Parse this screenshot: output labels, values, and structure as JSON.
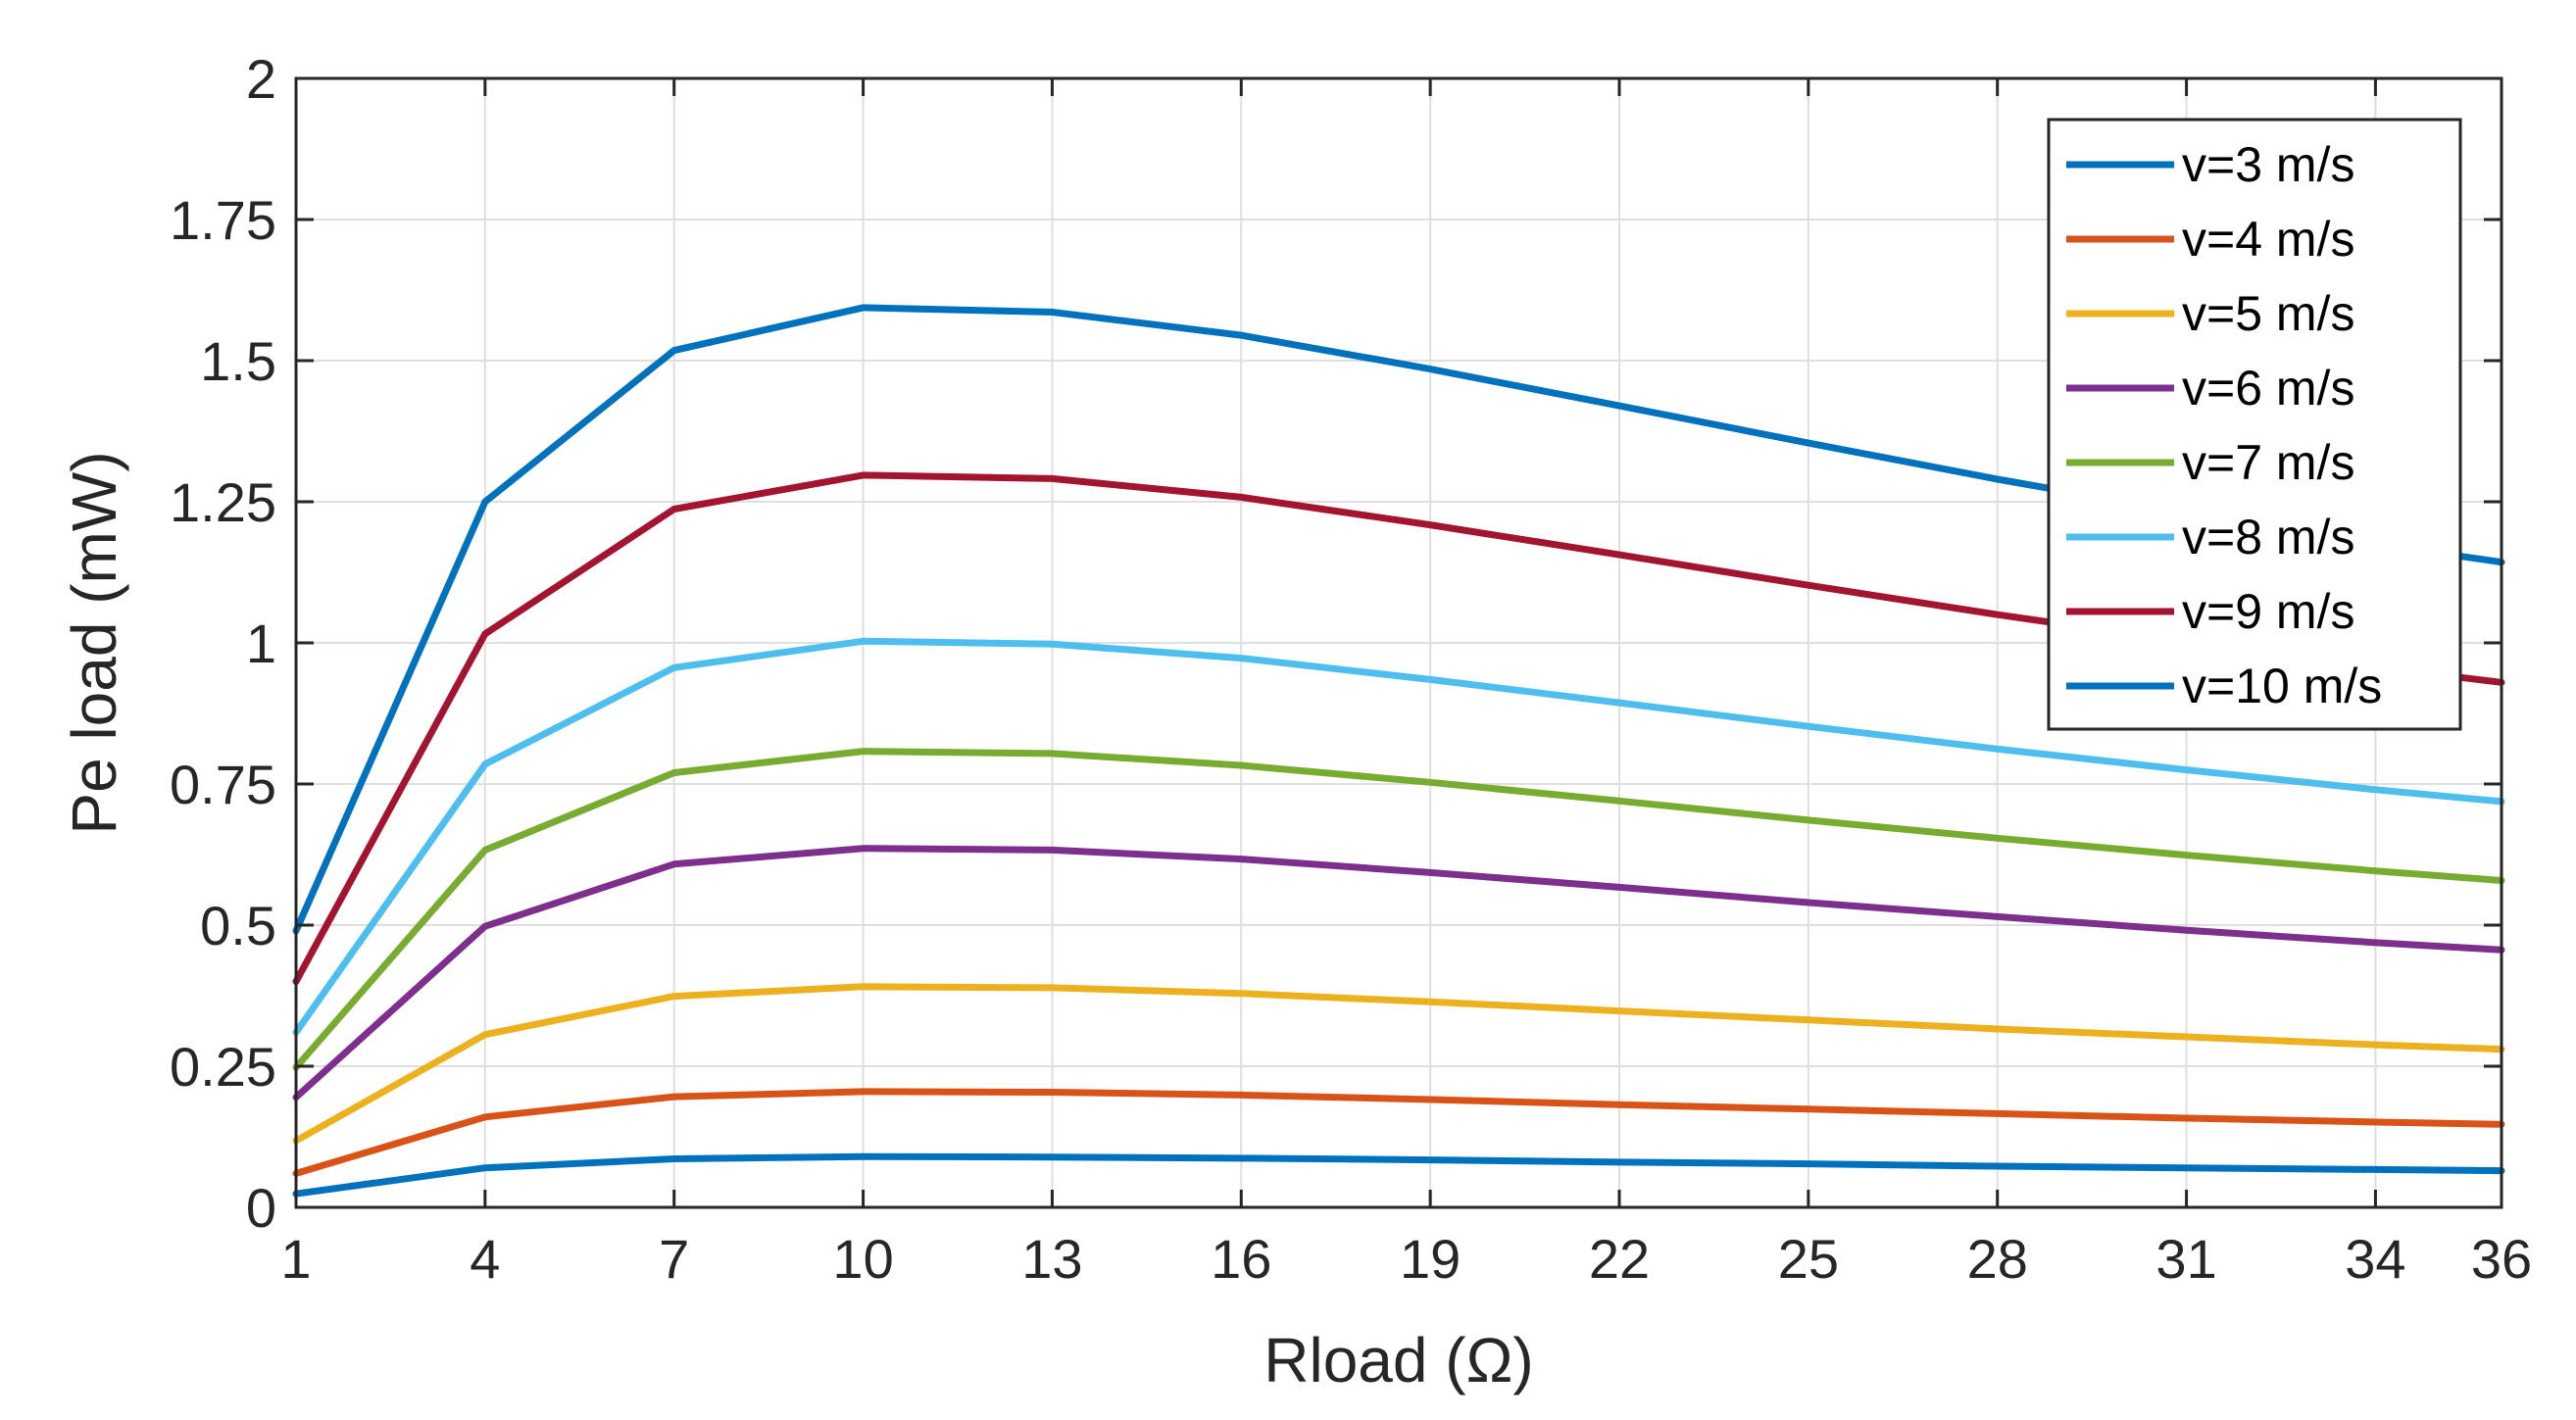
{
  "chart_data": {
    "type": "line",
    "title": "",
    "xlabel": "Rload (Ω)",
    "ylabel": "Pe load (mW)",
    "xlim": [
      1,
      36
    ],
    "ylim": [
      0,
      2
    ],
    "x_ticks": [
      1,
      4,
      7,
      10,
      13,
      16,
      19,
      22,
      25,
      28,
      31,
      34,
      36
    ],
    "y_ticks": [
      0,
      0.25,
      0.5,
      0.75,
      1,
      1.25,
      1.5,
      1.75,
      2
    ],
    "y_tick_labels": [
      "0",
      "0.25",
      "0.5",
      "0.75",
      "1",
      "1.25",
      "1.5",
      "1.75",
      "2"
    ],
    "grid": true,
    "legend_position": "top-right",
    "x": [
      1,
      4,
      7,
      10,
      13,
      16,
      19,
      22,
      25,
      28,
      31,
      34,
      36
    ],
    "series": [
      {
        "name": "v=3 m/s",
        "color": "#0072BD",
        "values": [
          0.024,
          0.07,
          0.086,
          0.09,
          0.089,
          0.087,
          0.084,
          0.08,
          0.077,
          0.073,
          0.07,
          0.067,
          0.065
        ]
      },
      {
        "name": "v=4 m/s",
        "color": "#D95319",
        "values": [
          0.06,
          0.16,
          0.196,
          0.205,
          0.204,
          0.199,
          0.191,
          0.182,
          0.174,
          0.166,
          0.158,
          0.151,
          0.147
        ]
      },
      {
        "name": "v=5 m/s",
        "color": "#EDB120",
        "values": [
          0.118,
          0.306,
          0.374,
          0.391,
          0.389,
          0.379,
          0.364,
          0.348,
          0.332,
          0.316,
          0.302,
          0.288,
          0.28
        ]
      },
      {
        "name": "v=6 m/s",
        "color": "#7E2F8E",
        "values": [
          0.195,
          0.498,
          0.608,
          0.636,
          0.633,
          0.617,
          0.593,
          0.567,
          0.54,
          0.515,
          0.491,
          0.469,
          0.456
        ]
      },
      {
        "name": "v=7 m/s",
        "color": "#77AC30",
        "values": [
          0.248,
          0.633,
          0.77,
          0.808,
          0.804,
          0.783,
          0.753,
          0.72,
          0.686,
          0.654,
          0.624,
          0.596,
          0.579
        ]
      },
      {
        "name": "v=8 m/s",
        "color": "#4DBEEE",
        "values": [
          0.31,
          0.785,
          0.956,
          1.003,
          0.998,
          0.973,
          0.935,
          0.894,
          0.852,
          0.812,
          0.775,
          0.74,
          0.719
        ]
      },
      {
        "name": "v=9 m/s",
        "color": "#A2142F",
        "values": [
          0.4,
          1.016,
          1.237,
          1.297,
          1.291,
          1.258,
          1.209,
          1.156,
          1.102,
          1.05,
          1.002,
          0.957,
          0.93
        ]
      },
      {
        "name": "v=10 m/s",
        "color": "#0072BD",
        "values": [
          0.49,
          1.25,
          1.518,
          1.594,
          1.586,
          1.545,
          1.485,
          1.42,
          1.354,
          1.29,
          1.231,
          1.175,
          1.143
        ]
      }
    ]
  }
}
